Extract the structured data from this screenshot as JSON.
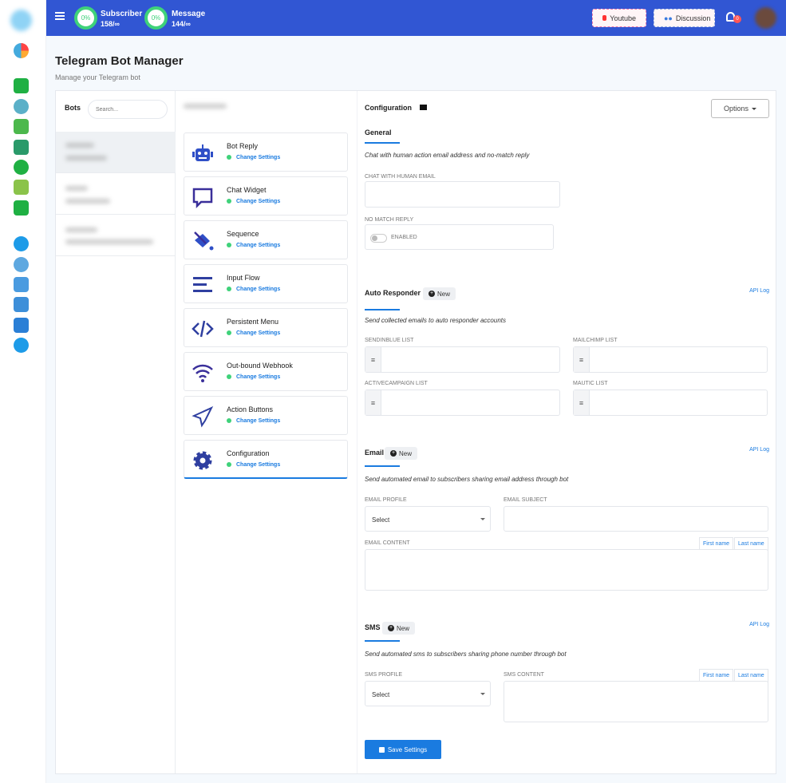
{
  "topbar": {
    "subscriber_pct": "0%",
    "subscriber_label": "Subscriber",
    "subscriber_count": "158/∞",
    "message_pct": "0%",
    "message_label": "Message",
    "message_count": "144/∞",
    "youtube": "Youtube",
    "discussion": "Discussion",
    "notif_count": "0"
  },
  "page": {
    "title": "Telegram Bot Manager",
    "subtitle": "Manage your Telegram bot"
  },
  "bots": {
    "label": "Bots",
    "search_placeholder": "Search..."
  },
  "options": [
    {
      "title": "Bot Reply",
      "link": "Change Settings",
      "icon": "robot-icon"
    },
    {
      "title": "Chat Widget",
      "link": "Change Settings",
      "icon": "chat-icon"
    },
    {
      "title": "Sequence",
      "link": "Change Settings",
      "icon": "paint-bucket-icon"
    },
    {
      "title": "Input Flow",
      "link": "Change Settings",
      "icon": "align-icon"
    },
    {
      "title": "Persistent Menu",
      "link": "Change Settings",
      "icon": "code-icon"
    },
    {
      "title": "Out-bound Webhook",
      "link": "Change Settings",
      "icon": "wifi-icon"
    },
    {
      "title": "Action Buttons",
      "link": "Change Settings",
      "icon": "paper-plane-icon"
    },
    {
      "title": "Configuration",
      "link": "Change Settings",
      "icon": "gear-icon"
    }
  ],
  "config": {
    "title": "Configuration",
    "options_btn": "Options",
    "general": {
      "title": "General",
      "desc": "Chat with human action email address and no-match reply",
      "email_label": "CHAT WITH HUMAN EMAIL",
      "nomatch_label": "NO MATCH REPLY",
      "toggle_label": "ENABLED",
      "toggle_on": false
    },
    "auto": {
      "title": "Auto Responder",
      "new": "New",
      "api": "API Log",
      "desc": "Send collected emails to auto responder accounts",
      "sendinblue": "SENDINBLUE LIST",
      "mailchimp": "MAILCHIMP LIST",
      "activecampaign": "ACTIVECAMPAIGN LIST",
      "mautic": "MAUTIC LIST"
    },
    "email": {
      "title": "Email",
      "new": "New",
      "api": "API Log",
      "desc": "Send automated email to subscribers sharing email address through bot",
      "profile": "EMAIL PROFILE",
      "profile_value": "Select",
      "subject": "EMAIL SUBJECT",
      "content": "EMAIL CONTENT",
      "first": "First name",
      "last": "Last name"
    },
    "sms": {
      "title": "SMS",
      "new": "New",
      "api": "API Log",
      "desc": "Send automated sms to subscribers sharing phone number through bot",
      "profile": "SMS PROFILE",
      "profile_value": "Select",
      "content": "SMS CONTENT",
      "first": "First name",
      "last": "Last name"
    },
    "save": "Save Settings"
  },
  "colors": {
    "topbar": "#3156d3",
    "accent": "#1a7be0",
    "success": "#3fd27a"
  }
}
